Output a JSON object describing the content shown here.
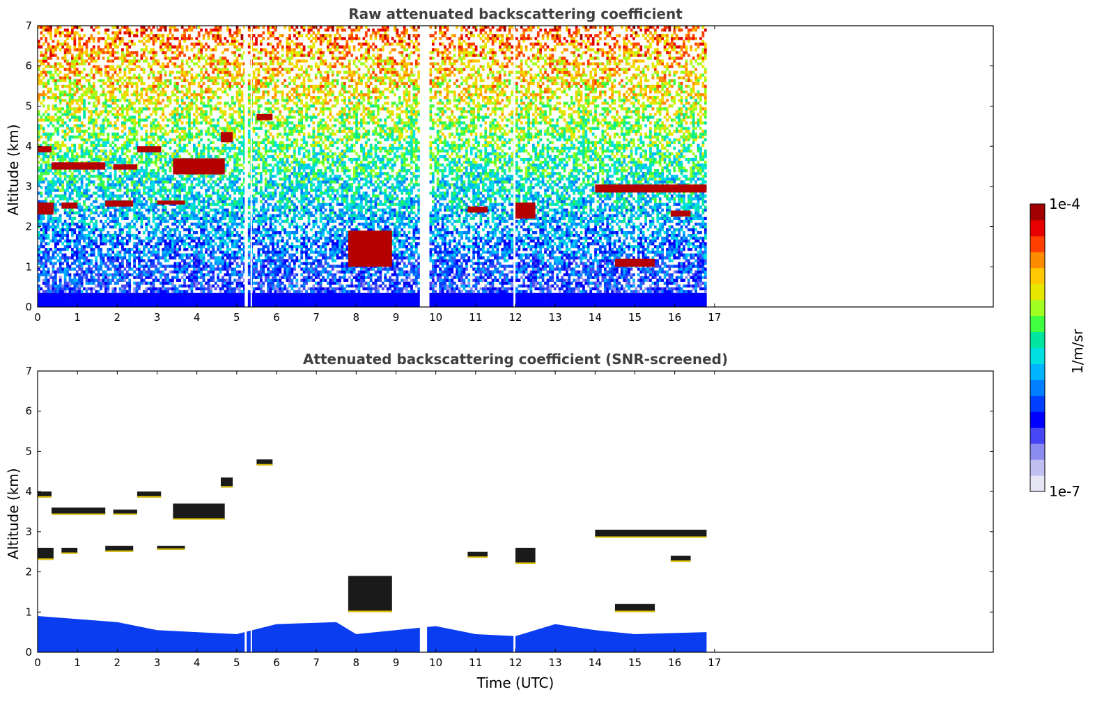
{
  "chart_data": [
    {
      "type": "heatmap",
      "title": "Raw attenuated backscattering coefficient",
      "xlabel": "",
      "ylabel": "Altitude (km)",
      "xlim": [
        0,
        24
      ],
      "ylim": [
        0,
        7
      ],
      "xticks": [
        0,
        1,
        2,
        3,
        4,
        5,
        6,
        7,
        8,
        9,
        10,
        11,
        12,
        13,
        14,
        15,
        16,
        17
      ],
      "yticks": [
        0,
        1,
        2,
        3,
        4,
        5,
        6,
        7
      ],
      "data_end_time": 16.8,
      "gaps": [
        [
          5.2,
          5.25
        ],
        [
          5.35,
          5.38
        ],
        [
          9.6,
          9.78
        ],
        [
          11.95,
          12.0
        ]
      ],
      "cloud_layers": [
        {
          "t": [
            0.0,
            0.35
          ],
          "alt": [
            3.85,
            4.0
          ]
        },
        {
          "t": [
            0.35,
            1.7
          ],
          "alt": [
            3.42,
            3.6
          ]
        },
        {
          "t": [
            1.9,
            2.5
          ],
          "alt": [
            3.42,
            3.55
          ]
        },
        {
          "t": [
            2.5,
            3.1
          ],
          "alt": [
            3.85,
            4.0
          ]
        },
        {
          "t": [
            3.4,
            4.7
          ],
          "alt": [
            3.3,
            3.7
          ]
        },
        {
          "t": [
            4.6,
            4.9
          ],
          "alt": [
            4.1,
            4.35
          ]
        },
        {
          "t": [
            5.5,
            5.9
          ],
          "alt": [
            4.65,
            4.8
          ]
        },
        {
          "t": [
            0.0,
            0.4
          ],
          "alt": [
            2.3,
            2.6
          ]
        },
        {
          "t": [
            0.6,
            1.0
          ],
          "alt": [
            2.45,
            2.6
          ]
        },
        {
          "t": [
            1.7,
            2.4
          ],
          "alt": [
            2.5,
            2.65
          ]
        },
        {
          "t": [
            3.0,
            3.7
          ],
          "alt": [
            2.55,
            2.65
          ]
        },
        {
          "t": [
            14.0,
            16.8
          ],
          "alt": [
            2.85,
            3.05
          ]
        },
        {
          "t": [
            15.9,
            16.4
          ],
          "alt": [
            2.25,
            2.4
          ]
        },
        {
          "t": [
            10.8,
            11.3
          ],
          "alt": [
            2.35,
            2.5
          ]
        },
        {
          "t": [
            12.0,
            12.5
          ],
          "alt": [
            2.2,
            2.6
          ]
        },
        {
          "t": [
            7.8,
            8.9
          ],
          "alt": [
            1.0,
            1.9
          ]
        },
        {
          "t": [
            14.5,
            15.5
          ],
          "alt": [
            1.0,
            1.2
          ]
        }
      ]
    },
    {
      "type": "heatmap",
      "title": "Attenuated backscattering coefficient (SNR-screened)",
      "xlabel": "Time (UTC)",
      "ylabel": "Altitude (km)",
      "xlim": [
        0,
        24
      ],
      "ylim": [
        0,
        7
      ],
      "xticks": [
        0,
        1,
        2,
        3,
        4,
        5,
        6,
        7,
        8,
        9,
        10,
        11,
        12,
        13,
        14,
        15,
        16,
        17
      ],
      "yticks": [
        0,
        1,
        2,
        3,
        4,
        5,
        6,
        7
      ],
      "data_end_time": 16.8,
      "boundary_layer_top": [
        {
          "t": 0,
          "alt": 0.9
        },
        {
          "t": 2,
          "alt": 0.75
        },
        {
          "t": 3,
          "alt": 0.55
        },
        {
          "t": 5,
          "alt": 0.45
        },
        {
          "t": 6,
          "alt": 0.7
        },
        {
          "t": 7.5,
          "alt": 0.75
        },
        {
          "t": 8,
          "alt": 0.45
        },
        {
          "t": 9,
          "alt": 0.55
        },
        {
          "t": 10,
          "alt": 0.65
        },
        {
          "t": 11,
          "alt": 0.45
        },
        {
          "t": 12,
          "alt": 0.4
        },
        {
          "t": 13,
          "alt": 0.7
        },
        {
          "t": 14,
          "alt": 0.55
        },
        {
          "t": 15,
          "alt": 0.45
        },
        {
          "t": 16.8,
          "alt": 0.5
        }
      ]
    }
  ],
  "colorbar": {
    "label": "1/m/sr",
    "min_label": "1e-7",
    "max_label": "1e-4",
    "colors": [
      "#e6e6f5",
      "#c0c0f0",
      "#8c8cf0",
      "#4646f5",
      "#0000ff",
      "#0040ff",
      "#0080ff",
      "#00b4ff",
      "#00e0e0",
      "#00e6a0",
      "#40ff40",
      "#a0ff20",
      "#e6e600",
      "#ffc800",
      "#ff8c00",
      "#ff4000",
      "#e60000",
      "#a00000"
    ]
  }
}
